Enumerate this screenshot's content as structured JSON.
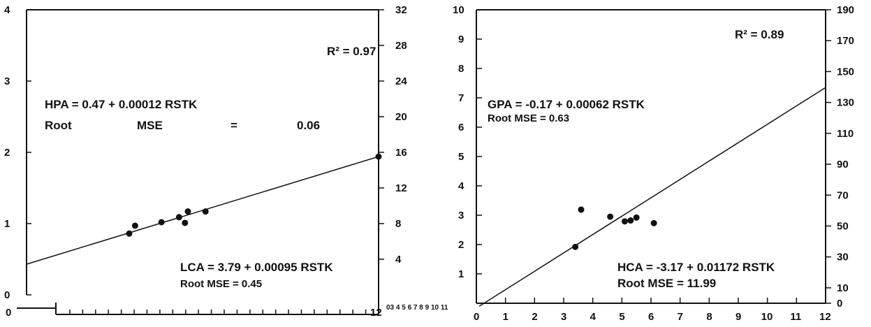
{
  "chart_data": [
    {
      "type": "scatter",
      "title": "",
      "xlabel": "",
      "ylabel": "",
      "xlim": [
        0,
        12
      ],
      "ylim": [
        0,
        4
      ],
      "y2lim": [
        0,
        32
      ],
      "x_tick_labels": [
        "0",
        "12"
      ],
      "y_ticks": [
        0,
        1,
        2,
        3,
        4
      ],
      "y_tick_labels": [
        "0",
        "1",
        "2",
        "3",
        "4"
      ],
      "y2_ticks": [
        4,
        8,
        12,
        16,
        20,
        24,
        28,
        32
      ],
      "y2_tick_labels": [
        "4",
        "8",
        "12",
        "16",
        "20",
        "24",
        "28",
        "32"
      ],
      "r2_label": "R² = 0.97",
      "annotations": {
        "hpa_equation": "HPA = 0.47 + 0.00012 RSTK",
        "hpa_rmse_root": "Root",
        "hpa_rmse_mse": "MSE",
        "hpa_rmse_eq": "=",
        "hpa_rmse_value": "0.06",
        "lca_equation": "LCA = 3.79 + 0.00095 RSTK",
        "lca_rmse": "Root MSE = 0.45"
      },
      "series": [
        {
          "x": [
            3.5,
            3.7,
            4.6,
            5.2,
            5.4,
            5.5,
            6.1,
            12.0
          ],
          "y": [
            0.86,
            0.97,
            1.02,
            1.09,
            1.01,
            1.17,
            1.17,
            1.94
          ]
        }
      ],
      "fit_line": {
        "x": [
          0,
          12
        ],
        "y": [
          0.43,
          1.94
        ]
      }
    },
    {
      "type": "scatter",
      "title": "",
      "xlabel": "",
      "ylabel": "",
      "xlim": [
        0,
        12
      ],
      "ylim": [
        0,
        10
      ],
      "y2lim": [
        0,
        190
      ],
      "x_ticks": [
        0,
        1,
        2,
        3,
        4,
        5,
        6,
        7,
        8,
        9,
        10,
        11,
        12
      ],
      "x_tick_labels": [
        "0",
        "1",
        "2",
        "3",
        "4",
        "5",
        "6",
        "7",
        "8",
        "9",
        "10",
        "11",
        "12"
      ],
      "y_ticks": [
        1,
        2,
        3,
        4,
        5,
        6,
        7,
        8,
        9,
        10
      ],
      "y_tick_labels": [
        "1",
        "2",
        "3",
        "4",
        "5",
        "6",
        "7",
        "8",
        "9",
        "10"
      ],
      "y2_ticks": [
        0,
        10,
        30,
        50,
        70,
        90,
        110,
        130,
        150,
        170,
        190
      ],
      "y2_tick_labels": [
        "0",
        "10",
        "30",
        "50",
        "70",
        "90",
        "110",
        "130",
        "150",
        "170",
        "190"
      ],
      "r2_label": "R² = 0.89",
      "stray_label": "03 4 5 6 7 8 9 10 11",
      "annotations": {
        "gpa_equation": "GPA = -0.17 + 0.00062 RSTK",
        "gpa_rmse": "Root  MSE  =  0.63",
        "hca_equation": "HCA = -3.17  + 0.01172 RSTK",
        "hca_rmse": "Root MSE = 11.99"
      },
      "series": [
        {
          "x": [
            3.4,
            3.6,
            4.6,
            5.1,
            5.3,
            5.5,
            6.1
          ],
          "y": [
            1.92,
            3.19,
            2.95,
            2.79,
            2.82,
            2.92,
            2.73
          ]
        }
      ],
      "fit_line": {
        "x": [
          0.1,
          12
        ],
        "y": [
          -0.1,
          7.35
        ]
      }
    }
  ]
}
